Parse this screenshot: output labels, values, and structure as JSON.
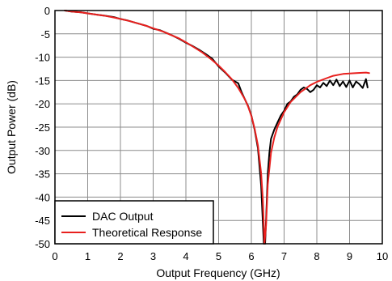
{
  "chart_data": {
    "type": "line",
    "xlabel": "Output Frequency (GHz)",
    "ylabel": "Output Power (dB)",
    "xlim": [
      0,
      10
    ],
    "ylim": [
      -50,
      0
    ],
    "xticks": [
      0,
      1,
      2,
      3,
      4,
      5,
      6,
      7,
      8,
      9,
      10
    ],
    "yticks": [
      0,
      -5,
      -10,
      -15,
      -20,
      -25,
      -30,
      -35,
      -40,
      -45,
      -50
    ],
    "grid": true,
    "legend_position": "bottom-left",
    "series": [
      {
        "name": "DAC Output",
        "color": "#000000",
        "x": [
          0.3,
          0.5,
          0.8,
          1.0,
          1.3,
          1.5,
          1.8,
          2.0,
          2.2,
          2.4,
          2.6,
          2.8,
          3.0,
          3.2,
          3.4,
          3.6,
          3.8,
          4.0,
          4.2,
          4.4,
          4.6,
          4.8,
          5.0,
          5.2,
          5.4,
          5.6,
          5.7,
          5.8,
          5.9,
          6.0,
          6.1,
          6.2,
          6.3,
          6.35,
          6.38,
          6.42,
          6.45,
          6.5,
          6.55,
          6.6,
          6.7,
          6.8,
          6.9,
          7.0,
          7.1,
          7.2,
          7.3,
          7.4,
          7.5,
          7.6,
          7.7,
          7.8,
          7.9,
          8.0,
          8.1,
          8.2,
          8.3,
          8.4,
          8.5,
          8.6,
          8.7,
          8.8,
          8.9,
          9.0,
          9.1,
          9.2,
          9.3,
          9.4,
          9.5,
          9.55
        ],
        "y": [
          0.0,
          -0.2,
          -0.4,
          -0.6,
          -0.9,
          -1.1,
          -1.4,
          -1.8,
          -2.1,
          -2.5,
          -2.9,
          -3.3,
          -3.9,
          -4.2,
          -4.8,
          -5.4,
          -6.1,
          -6.9,
          -7.6,
          -8.4,
          -9.3,
          -10.3,
          -12.0,
          -13.3,
          -14.8,
          -15.6,
          -17.5,
          -19.0,
          -20.5,
          -22.5,
          -25.5,
          -29.5,
          -37.5,
          -45.5,
          -50.0,
          -50.0,
          -45.0,
          -35.0,
          -30.5,
          -27.5,
          -25.5,
          -24.0,
          -22.5,
          -21.5,
          -20.0,
          -19.5,
          -18.5,
          -18.0,
          -17.0,
          -16.5,
          -16.8,
          -17.5,
          -17.0,
          -16.0,
          -16.5,
          -15.5,
          -16.2,
          -15.0,
          -16.0,
          -14.8,
          -16.2,
          -15.2,
          -16.4,
          -15.0,
          -16.5,
          -15.2,
          -15.8,
          -16.6,
          -14.7,
          -16.5
        ]
      },
      {
        "name": "Theoretical Response",
        "color": "#e8201e",
        "x": [
          0.3,
          0.5,
          0.8,
          1.0,
          1.3,
          1.5,
          1.8,
          2.0,
          2.3,
          2.5,
          2.8,
          3.0,
          3.3,
          3.5,
          3.8,
          4.0,
          4.3,
          4.5,
          4.8,
          5.0,
          5.2,
          5.4,
          5.6,
          5.8,
          5.9,
          6.0,
          6.1,
          6.2,
          6.3,
          6.35,
          6.4,
          6.45,
          6.5,
          6.6,
          6.7,
          6.8,
          7.0,
          7.2,
          7.5,
          7.8,
          8.0,
          8.3,
          8.5,
          8.8,
          9.0,
          9.2,
          9.5,
          9.6
        ],
        "y": [
          0.0,
          -0.2,
          -0.4,
          -0.6,
          -0.9,
          -1.1,
          -1.5,
          -1.8,
          -2.3,
          -2.7,
          -3.3,
          -3.8,
          -4.5,
          -5.1,
          -6.0,
          -6.8,
          -8.1,
          -9.0,
          -10.6,
          -11.8,
          -13.2,
          -14.7,
          -16.6,
          -19.0,
          -20.6,
          -22.6,
          -25.3,
          -28.9,
          -34.9,
          -40.5,
          -50.0,
          -46.0,
          -37.3,
          -30.5,
          -27.2,
          -24.9,
          -21.8,
          -19.6,
          -17.5,
          -16.0,
          -15.3,
          -14.5,
          -14.0,
          -13.6,
          -13.5,
          -13.4,
          -13.3,
          -13.4
        ]
      }
    ]
  }
}
